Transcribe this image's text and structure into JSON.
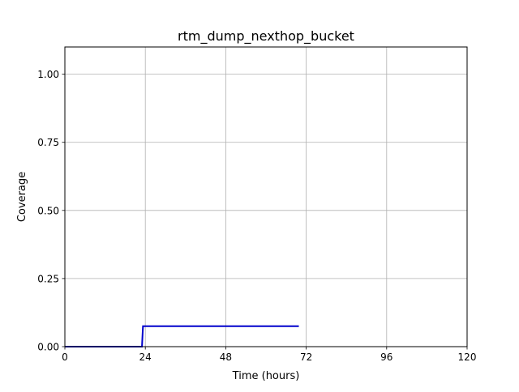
{
  "chart_data": {
    "type": "line",
    "title": "rtm_dump_nexthop_bucket",
    "xlabel": "Time (hours)",
    "ylabel": "Coverage",
    "xlim": [
      0,
      120
    ],
    "ylim": [
      0,
      1.1
    ],
    "xticks": [
      0,
      24,
      48,
      72,
      96,
      120
    ],
    "xtick_labels": [
      "0",
      "24",
      "48",
      "72",
      "96",
      "120"
    ],
    "yticks": [
      0.0,
      0.25,
      0.5,
      0.75,
      1.0
    ],
    "ytick_labels": [
      "0.00",
      "0.25",
      "0.50",
      "0.75",
      "1.00"
    ],
    "grid": true,
    "legend": "none",
    "series": [
      {
        "color": "#0000cc",
        "x": [
          0,
          23.0,
          23.3,
          69.8
        ],
        "y": [
          0.0,
          0.0,
          0.075,
          0.075
        ]
      }
    ]
  }
}
